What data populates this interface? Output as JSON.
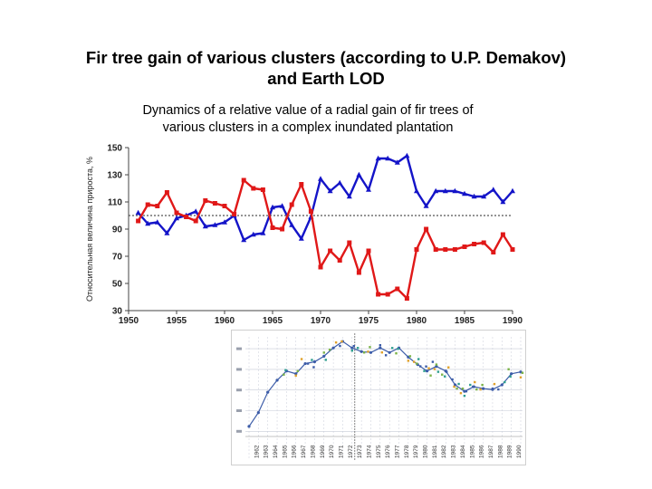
{
  "slide": {
    "title_line1": "Fir tree gain of various clusters (according to U.P. Demakov)",
    "title_line2": "and Earth LOD"
  },
  "chart_data": [
    {
      "type": "line",
      "title_line1": "Dynamics of a relative value of a radial gain of fir trees of",
      "title_line2": "various clusters in a complex inundated plantation",
      "ylabel": "Относительная величина прироста, %",
      "xlabel": "",
      "xlim": [
        1950,
        1990
      ],
      "ylim": [
        30,
        150
      ],
      "xticks": [
        1950,
        1955,
        1960,
        1965,
        1970,
        1975,
        1980,
        1985,
        1990
      ],
      "yticks": [
        30,
        50,
        70,
        90,
        110,
        130,
        150
      ],
      "reference_line": 100,
      "grid": false,
      "colors": {
        "series1": "#1414c8",
        "series2": "#e01818",
        "reference": "#555555"
      },
      "x": [
        1951,
        1952,
        1953,
        1954,
        1955,
        1956,
        1957,
        1958,
        1959,
        1960,
        1961,
        1962,
        1963,
        1964,
        1965,
        1966,
        1967,
        1968,
        1969,
        1970,
        1971,
        1972,
        1973,
        1974,
        1975,
        1976,
        1977,
        1978,
        1979,
        1980,
        1981,
        1982,
        1983,
        1984,
        1985,
        1986,
        1987,
        1988,
        1989,
        1990
      ],
      "series": [
        {
          "values": [
            102,
            94,
            95,
            87,
            98,
            100,
            103,
            92,
            93,
            95,
            100,
            82,
            86,
            87,
            106,
            107,
            93,
            83,
            99,
            127,
            118,
            124,
            114,
            130,
            119,
            142,
            142,
            139,
            144,
            118,
            107,
            118,
            118,
            118,
            116,
            114,
            114,
            119,
            110,
            118
          ]
        },
        {
          "values": [
            96,
            108,
            107,
            117,
            102,
            99,
            96,
            111,
            109,
            107,
            101,
            126,
            120,
            119,
            91,
            90,
            108,
            123,
            103,
            62,
            74,
            67,
            80,
            58,
            74,
            42,
            42,
            46,
            39,
            75,
            90,
            75,
            75,
            75,
            77,
            79,
            80,
            73,
            86,
            75
          ]
        }
      ]
    },
    {
      "type": "line",
      "title": "",
      "x_tick_labels": [
        "1962",
        "1963",
        "1964",
        "1965",
        "1966",
        "1967",
        "1968",
        "1969",
        "1970",
        "1971",
        "1972",
        "1973",
        "1974",
        "1975",
        "1976",
        "1977",
        "1978",
        "1979",
        "1980",
        "1981",
        "1982",
        "1983",
        "1984",
        "1985",
        "1986",
        "1987",
        "1988",
        "1989",
        "1990"
      ],
      "x": [
        1961,
        1962,
        1963,
        1964,
        1965,
        1966,
        1967,
        1968,
        1969,
        1970,
        1971,
        1972,
        1973,
        1974,
        1975,
        1976,
        1977,
        1978,
        1979,
        1980,
        1981,
        1982,
        1983,
        1984,
        1985,
        1986,
        1987,
        1988,
        1989,
        1990
      ],
      "values": [
        0.05,
        0.2,
        0.42,
        0.55,
        0.65,
        0.62,
        0.73,
        0.75,
        0.81,
        0.9,
        0.97,
        0.9,
        0.86,
        0.85,
        0.9,
        0.85,
        0.9,
        0.8,
        0.72,
        0.65,
        0.7,
        0.65,
        0.5,
        0.43,
        0.48,
        0.46,
        0.45,
        0.5,
        0.62,
        0.64
      ],
      "colors": {
        "line": "#3c5ca8",
        "markers": [
          "#2f9e8f",
          "#7bb348",
          "#e0a12a",
          "#3c5ca8"
        ],
        "grid": "#c8ccd8"
      }
    }
  ]
}
